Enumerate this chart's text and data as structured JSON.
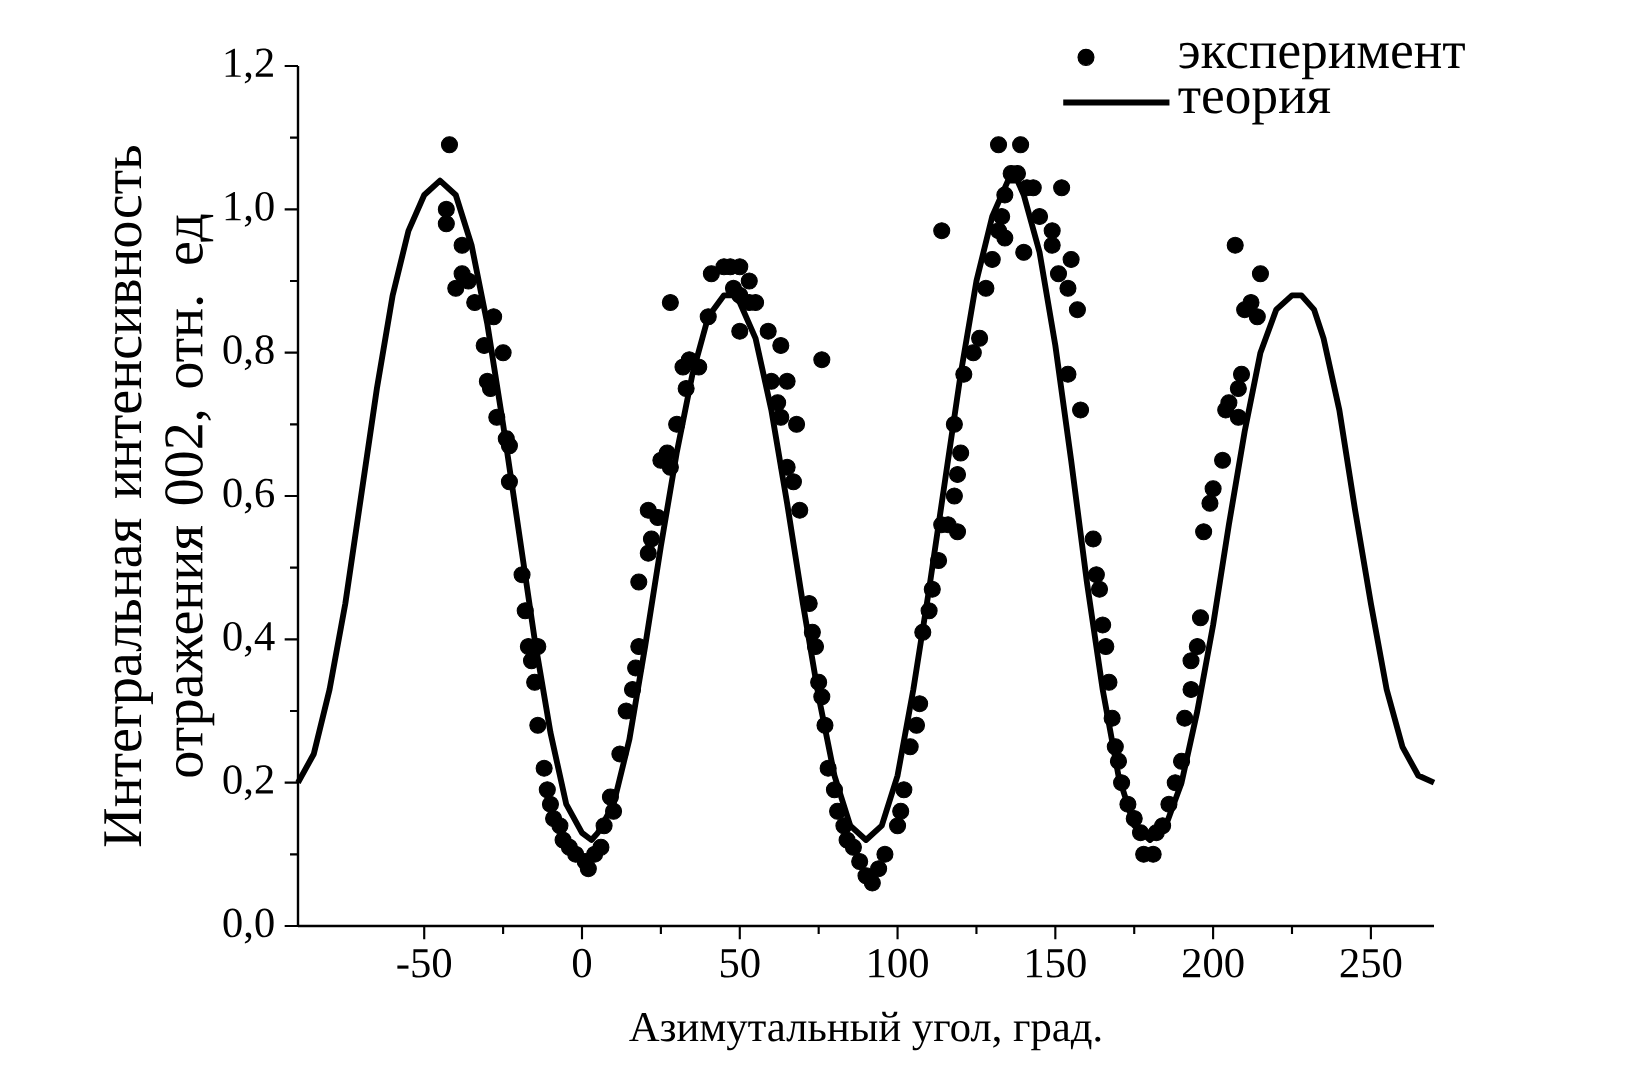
{
  "chart_data": {
    "type": "scatter",
    "xlabel": "Азимутальный угол, град.",
    "ylabel": "Интегральная интенсивность отражения 002, отн. ед",
    "xlim": [
      -90,
      270
    ],
    "xticks": [
      -50,
      0,
      50,
      100,
      150,
      200,
      250
    ],
    "ylim": [
      0,
      1.2
    ],
    "yticks": [
      {
        "value": 0,
        "label": "0,0"
      },
      {
        "value": 0.2,
        "label": "0,2"
      },
      {
        "value": 0.4,
        "label": "0,4"
      },
      {
        "value": 0.6,
        "label": "0,6"
      },
      {
        "value": 0.8,
        "label": "0,8"
      },
      {
        "value": 1.0,
        "label": "1,0"
      },
      {
        "value": 1.2,
        "label": "1,2"
      }
    ],
    "grid": false,
    "legend": "top right",
    "marker": "circle",
    "series": [
      {
        "name": "эксперимент",
        "color": "#000000",
        "x": [
          -42,
          -43,
          -43,
          -38,
          -40,
          -38,
          -36,
          -34,
          -28,
          -31,
          -25,
          -30,
          -29,
          -27,
          -24,
          -23,
          -23,
          -19,
          -18,
          -17,
          -14,
          -16,
          -15,
          -14,
          -12,
          -11,
          -10,
          -9,
          -7,
          -6,
          -4,
          -2,
          1,
          2,
          4,
          6,
          7,
          9,
          10,
          12,
          14,
          16,
          17,
          18,
          18,
          21,
          22,
          21,
          24,
          25,
          27,
          28,
          28,
          30,
          32,
          34,
          33,
          37,
          40,
          41,
          45,
          47,
          50,
          48,
          50,
          53,
          55,
          53,
          50,
          59,
          63,
          60,
          62,
          65,
          63,
          68,
          65,
          67,
          69,
          76,
          72,
          73,
          74,
          75,
          76,
          77,
          78,
          80,
          81,
          83,
          84,
          86,
          88,
          90,
          92,
          94,
          96,
          100,
          101,
          102,
          104,
          106,
          107,
          108,
          110,
          111,
          113,
          114,
          116,
          119,
          118,
          119,
          120,
          118,
          114,
          121,
          124,
          126,
          128,
          130,
          132,
          133,
          132,
          139,
          134,
          136,
          138,
          141,
          143,
          145,
          134,
          140,
          152,
          149,
          149,
          155,
          151,
          154,
          157,
          154,
          158,
          162,
          163,
          164,
          165,
          166,
          167,
          168,
          169,
          170,
          171,
          173,
          175,
          177,
          178,
          181,
          182,
          184,
          186,
          188,
          190,
          191,
          193,
          193,
          195,
          196,
          197,
          199,
          200,
          203,
          204,
          205,
          208,
          208,
          209,
          210,
          212,
          214,
          215,
          207
        ],
        "values": [
          1.09,
          1.0,
          0.98,
          0.95,
          0.89,
          0.91,
          0.9,
          0.87,
          0.85,
          0.81,
          0.8,
          0.76,
          0.75,
          0.71,
          0.68,
          0.67,
          0.62,
          0.49,
          0.44,
          0.39,
          0.39,
          0.37,
          0.34,
          0.28,
          0.22,
          0.19,
          0.17,
          0.15,
          0.14,
          0.12,
          0.11,
          0.1,
          0.09,
          0.08,
          0.1,
          0.11,
          0.14,
          0.18,
          0.16,
          0.24,
          0.3,
          0.33,
          0.36,
          0.39,
          0.48,
          0.52,
          0.54,
          0.58,
          0.57,
          0.65,
          0.66,
          0.64,
          0.87,
          0.7,
          0.78,
          0.79,
          0.75,
          0.78,
          0.85,
          0.91,
          0.92,
          0.92,
          0.92,
          0.89,
          0.88,
          0.9,
          0.87,
          0.87,
          0.83,
          0.83,
          0.81,
          0.76,
          0.73,
          0.76,
          0.71,
          0.7,
          0.64,
          0.62,
          0.58,
          0.79,
          0.45,
          0.41,
          0.39,
          0.34,
          0.32,
          0.28,
          0.22,
          0.19,
          0.16,
          0.14,
          0.12,
          0.11,
          0.09,
          0.07,
          0.06,
          0.08,
          0.1,
          0.14,
          0.16,
          0.19,
          0.25,
          0.28,
          0.31,
          0.41,
          0.44,
          0.47,
          0.51,
          0.56,
          0.56,
          0.55,
          0.6,
          0.63,
          0.66,
          0.7,
          0.97,
          0.77,
          0.8,
          0.82,
          0.89,
          0.93,
          0.97,
          0.99,
          1.09,
          1.09,
          1.02,
          1.05,
          1.05,
          1.03,
          1.03,
          0.99,
          0.96,
          0.94,
          1.03,
          0.97,
          0.95,
          0.93,
          0.91,
          0.89,
          0.86,
          0.77,
          0.72,
          0.54,
          0.49,
          0.47,
          0.42,
          0.39,
          0.34,
          0.29,
          0.25,
          0.23,
          0.2,
          0.17,
          0.15,
          0.13,
          0.1,
          0.1,
          0.13,
          0.14,
          0.17,
          0.2,
          0.23,
          0.29,
          0.33,
          0.37,
          0.39,
          0.43,
          0.55,
          0.59,
          0.61,
          0.65,
          0.72,
          0.73,
          0.71,
          0.75,
          0.77,
          0.86,
          0.87,
          0.85,
          0.91,
          0.95
        ]
      },
      {
        "name": "теория",
        "type": "line",
        "line_style": "solid",
        "marker": "none",
        "color": "#000000",
        "x": [
          -90,
          -85,
          -80,
          -75,
          -70,
          -65,
          -60,
          -55,
          -50,
          -45,
          -40,
          -35,
          -30,
          -25,
          -20,
          -15,
          -10,
          -5,
          0,
          3,
          5,
          10,
          15,
          20,
          25,
          30,
          35,
          40,
          45,
          48,
          50,
          55,
          60,
          65,
          70,
          75,
          80,
          85,
          90,
          95,
          100,
          105,
          110,
          115,
          120,
          125,
          130,
          135,
          138,
          140,
          145,
          150,
          155,
          160,
          165,
          170,
          175,
          180,
          185,
          190,
          195,
          200,
          205,
          210,
          215,
          220,
          225,
          228,
          232,
          235,
          240,
          245,
          250,
          255,
          260,
          265,
          270
        ],
        "values": [
          0.2,
          0.24,
          0.33,
          0.45,
          0.6,
          0.75,
          0.88,
          0.97,
          1.02,
          1.04,
          1.02,
          0.95,
          0.84,
          0.7,
          0.55,
          0.4,
          0.27,
          0.17,
          0.13,
          0.12,
          0.13,
          0.17,
          0.26,
          0.39,
          0.53,
          0.66,
          0.77,
          0.85,
          0.88,
          0.88,
          0.87,
          0.82,
          0.72,
          0.59,
          0.45,
          0.32,
          0.21,
          0.14,
          0.12,
          0.14,
          0.21,
          0.33,
          0.47,
          0.62,
          0.77,
          0.9,
          0.99,
          1.04,
          1.04,
          1.02,
          0.94,
          0.81,
          0.65,
          0.48,
          0.33,
          0.21,
          0.14,
          0.12,
          0.14,
          0.2,
          0.3,
          0.42,
          0.56,
          0.69,
          0.8,
          0.86,
          0.88,
          0.88,
          0.86,
          0.82,
          0.72,
          0.58,
          0.45,
          0.33,
          0.25,
          0.21,
          0.2
        ]
      }
    ]
  }
}
